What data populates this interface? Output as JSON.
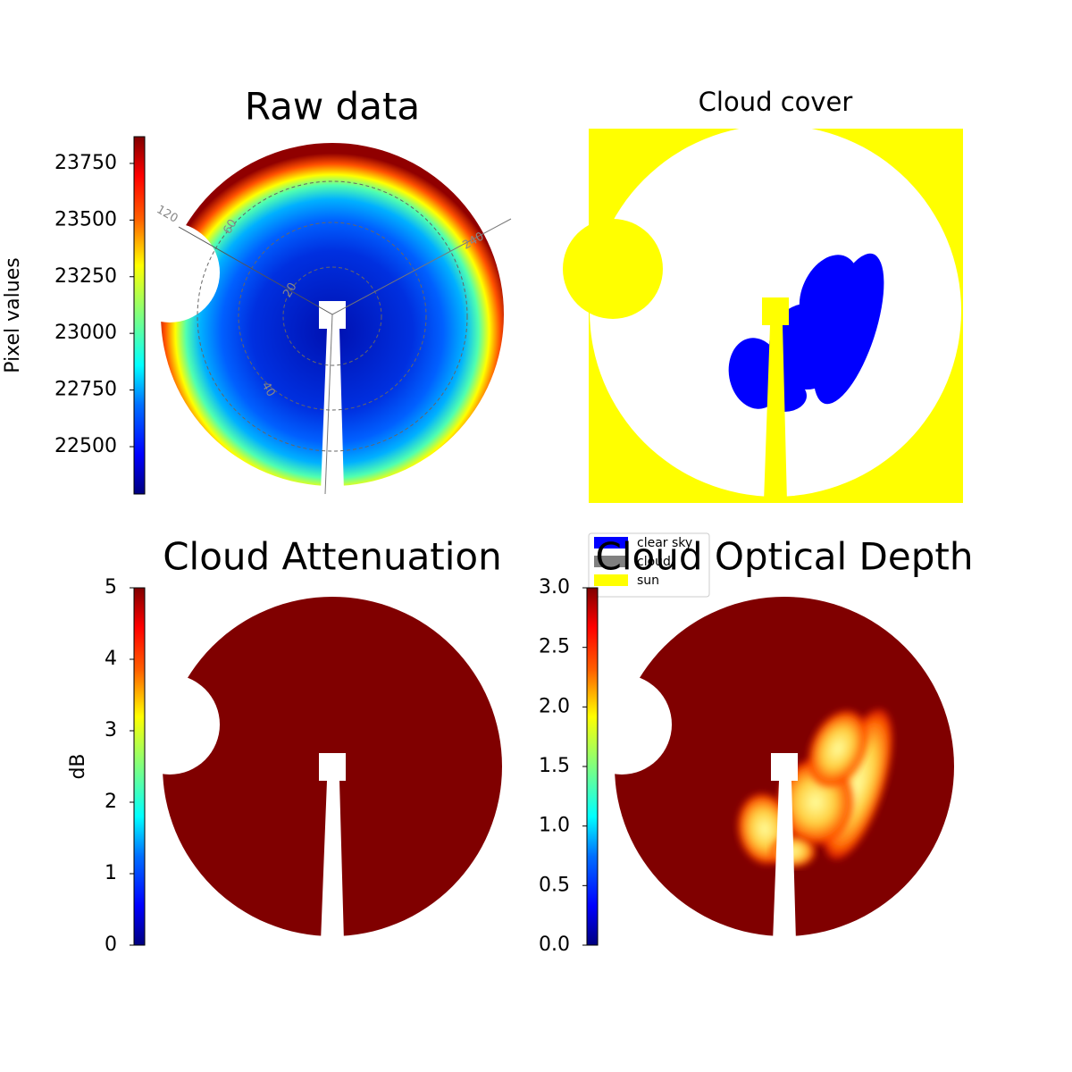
{
  "chart_data": [
    {
      "type": "image",
      "title": "Raw data",
      "ylabel": "Pixel values",
      "colormap": "jet",
      "ylim": [
        22291,
        23868
      ],
      "yticks": [
        22500,
        22750,
        23000,
        23250,
        23500,
        23750
      ],
      "annotations": [
        "120",
        "60",
        "240",
        "20",
        "40"
      ]
    },
    {
      "type": "image",
      "title": "Cloud cover",
      "legend": [
        {
          "name": "clear sky",
          "color": "#0000ff"
        },
        {
          "name": "cloud",
          "color": "#808080"
        },
        {
          "name": "sun",
          "color": "#ffff00"
        }
      ]
    },
    {
      "type": "image",
      "title": "Cloud Attenuation",
      "ylabel": "dB",
      "colormap": "jet",
      "ylim": [
        0,
        5
      ],
      "yticks": [
        0,
        1,
        2,
        3,
        4,
        5
      ]
    },
    {
      "type": "image",
      "title": "Cloud Optical Depth",
      "colormap": "jet",
      "ylim": [
        0,
        3
      ],
      "yticks": [
        {
          "value": 0,
          "label": "0.0"
        },
        {
          "value": 0.5,
          "label": "0.5"
        },
        {
          "value": 1,
          "label": "1.0"
        },
        {
          "value": 1.5,
          "label": "1.5"
        },
        {
          "value": 2,
          "label": "2.0"
        },
        {
          "value": 2.5,
          "label": "2.5"
        },
        {
          "value": 3,
          "label": "3.0"
        }
      ]
    }
  ]
}
